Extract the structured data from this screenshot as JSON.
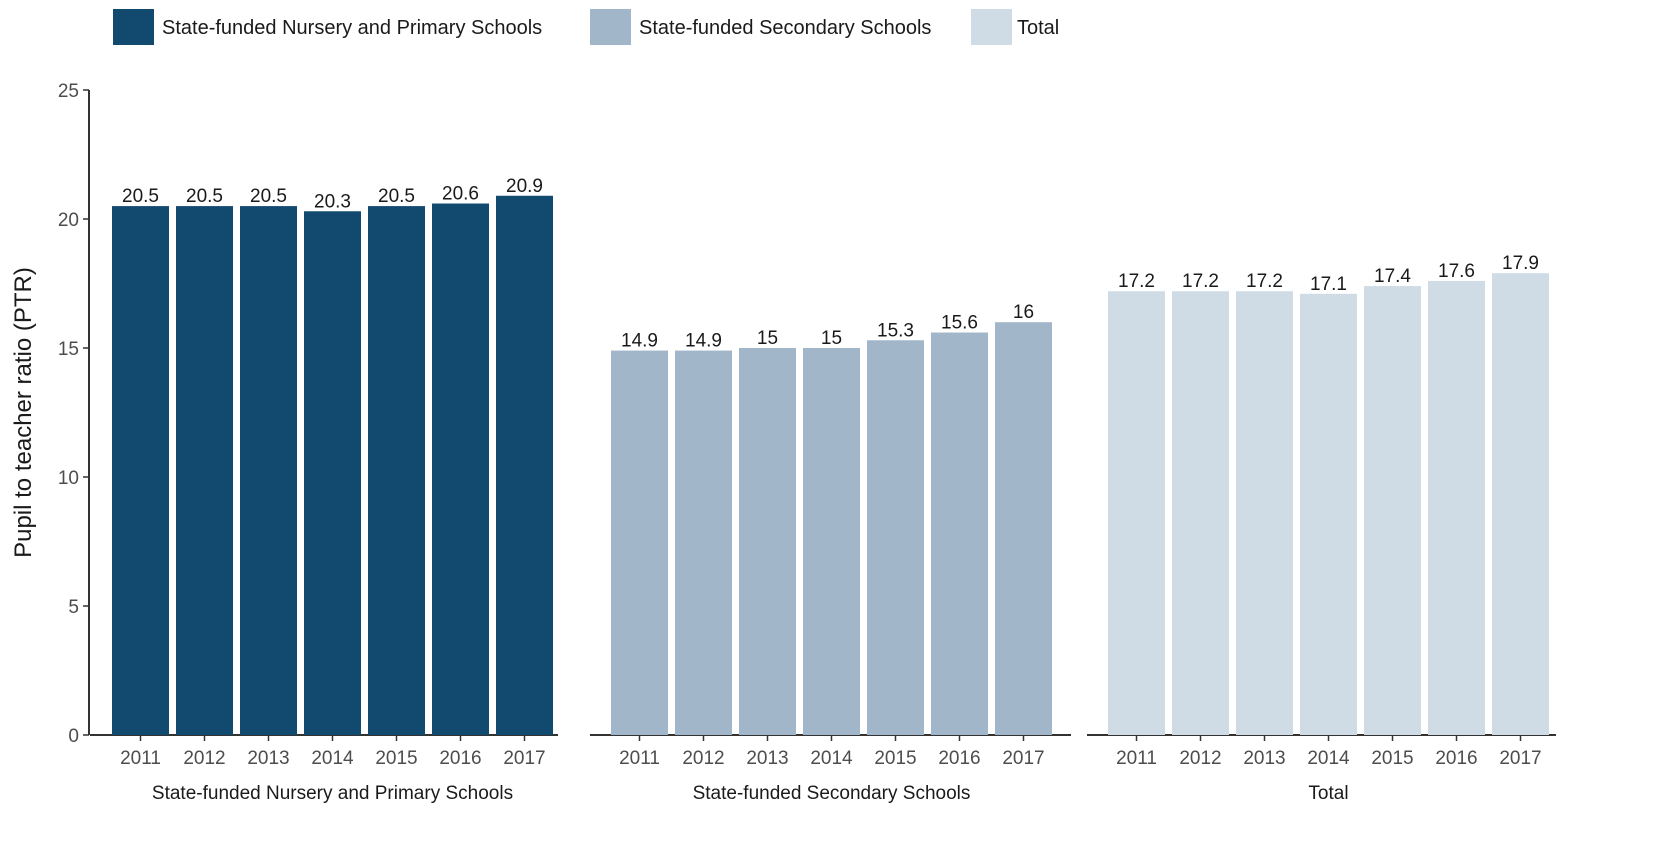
{
  "chart_data": {
    "type": "bar",
    "title": "",
    "ylabel": "Pupil to teacher ratio (PTR)",
    "ylim": [
      0,
      25
    ],
    "yticks": [
      0,
      5,
      10,
      15,
      20,
      25
    ],
    "grid": false,
    "legend_position": "top-left",
    "categories": [
      "2011",
      "2012",
      "2013",
      "2014",
      "2015",
      "2016",
      "2017"
    ],
    "series": [
      {
        "name": "State-funded Nursery and Primary Schools",
        "color": "#12496f",
        "values": [
          20.5,
          20.5,
          20.5,
          20.3,
          20.5,
          20.6,
          20.9
        ],
        "labels": [
          "20.5",
          "20.5",
          "20.5",
          "20.3",
          "20.5",
          "20.6",
          "20.9"
        ]
      },
      {
        "name": "State-funded Secondary Schools",
        "color": "#a1b6c8",
        "values": [
          14.9,
          14.9,
          15,
          15,
          15.3,
          15.6,
          16
        ],
        "labels": [
          "14.9",
          "14.9",
          "15",
          "15",
          "15.3",
          "15.6",
          "16"
        ]
      },
      {
        "name": "Total",
        "color": "#d0dce5",
        "values": [
          17.2,
          17.2,
          17.2,
          17.1,
          17.4,
          17.6,
          17.9
        ],
        "labels": [
          "17.2",
          "17.2",
          "17.2",
          "17.1",
          "17.4",
          "17.6",
          "17.9"
        ]
      }
    ],
    "facets": [
      "State-funded Nursery and Primary Schools",
      "State-funded Secondary Schools",
      "Total"
    ]
  }
}
